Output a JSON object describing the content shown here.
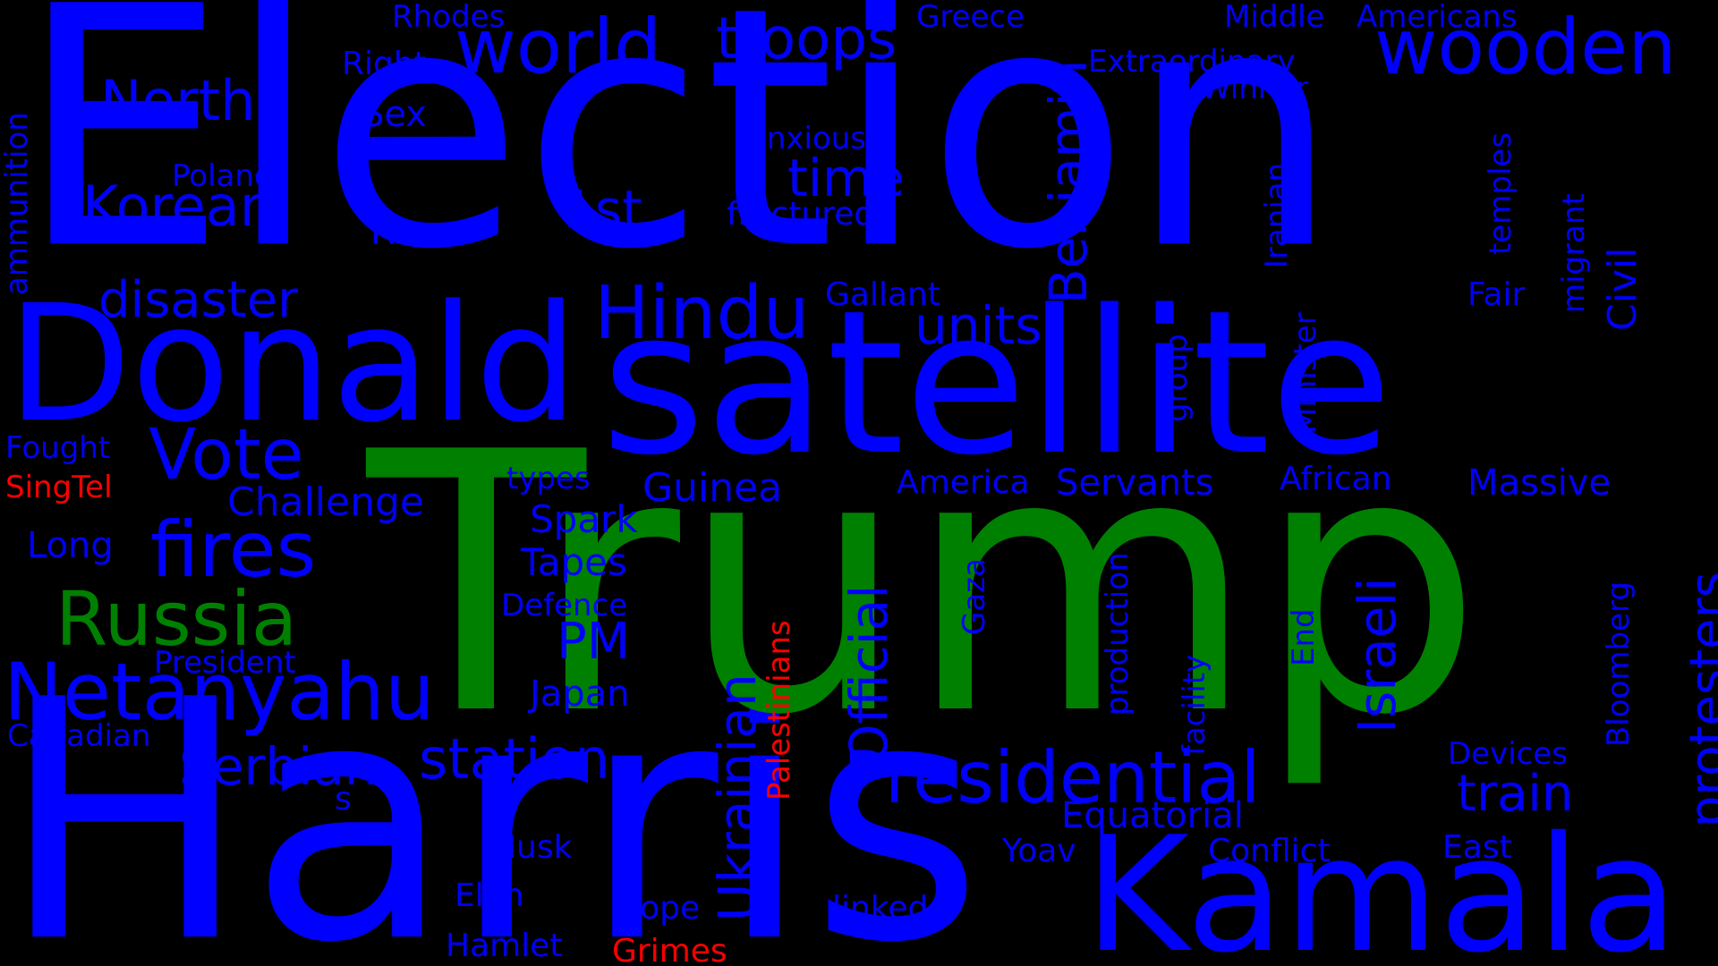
{
  "colors": {
    "background": "#000000",
    "blue": "#0000ff",
    "green": "#008000",
    "red": "#ff0000"
  },
  "words": {
    "election": "Election",
    "trump": "Trump",
    "harris": "Harris",
    "satellite": "satellite",
    "donald": "Donald",
    "kamala": "Kamala",
    "wooden": "wooden",
    "world": "world",
    "troops": "troops",
    "north": "North",
    "korean": "Korean",
    "benjamin": "Benjamin",
    "netanyahu": "Netanyahu",
    "russia": "Russia",
    "fires": "fires",
    "vote": "Vote",
    "hindu": "Hindu",
    "presidential": "Presidential",
    "official": "Official",
    "ukrainian": "Ukrainian",
    "israeli": "Israeli",
    "protesters": "protesters",
    "station": "station",
    "serbian": "Serbian",
    "units": "units",
    "time": "time",
    "first": "1st",
    "disaster": "disaster",
    "train": "train",
    "pm": "PM",
    "rhodes": "Rhodes",
    "greece": "Greece",
    "middle": "Middle",
    "americans": "Americans",
    "extraordinary": "Extraordinary",
    "winner": "Winner",
    "right": "Right",
    "sex": "Sex",
    "anxious": "anxious",
    "fractured": "fractured",
    "poland": "Poland",
    "row": "Row",
    "gallant": "Gallant",
    "ammunition": "ammunition",
    "iranian": "Iranian",
    "temples": "temples",
    "migrant": "migrant",
    "civil": "Civil",
    "fair": "Fair",
    "minister": "Minister",
    "group": "group",
    "fought": "Fought",
    "singtel": "SingTel",
    "challenge": "Challenge",
    "long": "Long",
    "types": "types",
    "guinea": "Guinea",
    "spark": "Spark",
    "tapes": "Tapes",
    "america": "America",
    "servants": "Servants",
    "african": "African",
    "massive": "Massive",
    "defence": "Defence",
    "president": "President",
    "palestinians": "Palestinians",
    "gaza": "Gaza",
    "production": "production",
    "facility": "facility",
    "end": "End",
    "japan": "Japan",
    "canadian": "Canadian",
    "bloomberg": "Bloomberg",
    "devices": "Devices",
    "s": "s",
    "equatorial": "Equatorial",
    "musk": "Musk",
    "yoav": "Yoav",
    "conflict": "Conflict",
    "east": "East",
    "elon": "Elon",
    "hope": "Hope",
    "linked": "linked",
    "hamlet": "Hamlet",
    "grimes": "Grimes"
  }
}
